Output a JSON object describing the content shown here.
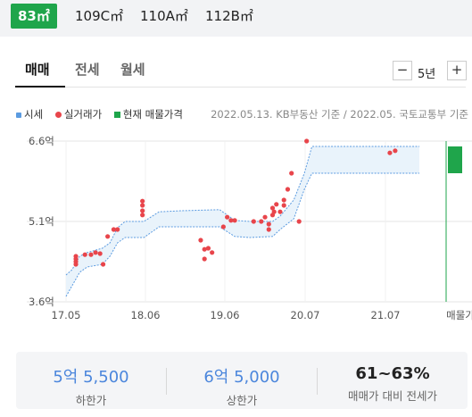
{
  "area_tabs": [
    {
      "label": "83㎡",
      "active": true
    },
    {
      "label": "109C㎡",
      "active": false
    },
    {
      "label": "110A㎡",
      "active": false
    },
    {
      "label": "112B㎡",
      "active": false
    }
  ],
  "deal_tabs": [
    {
      "label": "매매",
      "active": true
    },
    {
      "label": "전세",
      "active": false
    },
    {
      "label": "월세",
      "active": false
    }
  ],
  "period": {
    "decrement": "−",
    "label": "5년",
    "increment": "+"
  },
  "legend": {
    "market": "시세",
    "actual": "실거래가",
    "listing": "현재 매물가격"
  },
  "source_note": "2022.05.13. KB부동산 기준 / 2022.05. 국토교통부 기준",
  "colors": {
    "brand_green": "#1fa54b",
    "market_line": "#5b9be0",
    "band_fill": "#e9f3fb",
    "actual_dot": "#e8454b"
  },
  "chart_data": {
    "type": "line",
    "x_ticks": [
      "17.05",
      "18.06",
      "19.06",
      "20.07",
      "21.07",
      "매물가"
    ],
    "y_ticks": [
      "6.6억",
      "5.1억",
      "3.6억"
    ],
    "ylim": [
      3.6,
      6.6
    ],
    "xlim": [
      2017.37,
      2022.37
    ],
    "grid": true,
    "market_upper": [
      [
        2017.37,
        4.1
      ],
      [
        2017.45,
        4.2
      ],
      [
        2017.55,
        4.45
      ],
      [
        2017.65,
        4.52
      ],
      [
        2017.85,
        4.6
      ],
      [
        2017.95,
        4.7
      ],
      [
        2018.05,
        4.98
      ],
      [
        2018.15,
        5.1
      ],
      [
        2018.4,
        5.1
      ],
      [
        2018.6,
        5.28
      ],
      [
        2018.9,
        5.3
      ],
      [
        2019.4,
        5.32
      ],
      [
        2019.6,
        5.12
      ],
      [
        2019.8,
        5.1
      ],
      [
        2020.1,
        5.1
      ],
      [
        2020.2,
        5.2
      ],
      [
        2020.38,
        5.5
      ],
      [
        2020.52,
        6.0
      ],
      [
        2020.62,
        6.5
      ],
      [
        2021.0,
        6.5
      ],
      [
        2021.8,
        6.5
      ],
      [
        2022.04,
        6.5
      ]
    ],
    "market_lower": [
      [
        2017.37,
        3.7
      ],
      [
        2017.45,
        3.9
      ],
      [
        2017.55,
        4.15
      ],
      [
        2017.65,
        4.25
      ],
      [
        2017.85,
        4.3
      ],
      [
        2017.95,
        4.45
      ],
      [
        2018.05,
        4.7
      ],
      [
        2018.15,
        4.8
      ],
      [
        2018.4,
        4.8
      ],
      [
        2018.6,
        5.0
      ],
      [
        2018.9,
        5.0
      ],
      [
        2019.4,
        5.0
      ],
      [
        2019.6,
        4.82
      ],
      [
        2019.8,
        4.8
      ],
      [
        2020.1,
        4.82
      ],
      [
        2020.2,
        4.95
      ],
      [
        2020.38,
        5.15
      ],
      [
        2020.52,
        5.7
      ],
      [
        2020.62,
        6.0
      ],
      [
        2021.0,
        6.0
      ],
      [
        2021.8,
        6.0
      ],
      [
        2022.04,
        6.0
      ]
    ],
    "actual_trades": [
      [
        2017.5,
        4.45
      ],
      [
        2017.5,
        4.4
      ],
      [
        2017.5,
        4.35
      ],
      [
        2017.5,
        4.3
      ],
      [
        2017.62,
        4.48
      ],
      [
        2017.7,
        4.48
      ],
      [
        2017.76,
        4.52
      ],
      [
        2017.82,
        4.5
      ],
      [
        2017.86,
        4.3
      ],
      [
        2017.92,
        4.82
      ],
      [
        2018.0,
        4.95
      ],
      [
        2018.05,
        4.95
      ],
      [
        2018.38,
        5.48
      ],
      [
        2018.38,
        5.4
      ],
      [
        2018.38,
        5.3
      ],
      [
        2018.38,
        5.22
      ],
      [
        2019.15,
        4.75
      ],
      [
        2019.2,
        4.58
      ],
      [
        2019.2,
        4.4
      ],
      [
        2019.25,
        4.6
      ],
      [
        2019.3,
        4.52
      ],
      [
        2019.45,
        5.0
      ],
      [
        2019.5,
        5.18
      ],
      [
        2019.55,
        5.12
      ],
      [
        2019.6,
        5.12
      ],
      [
        2019.85,
        5.1
      ],
      [
        2019.95,
        5.1
      ],
      [
        2020.0,
        5.18
      ],
      [
        2020.05,
        5.05
      ],
      [
        2020.05,
        4.95
      ],
      [
        2020.1,
        5.35
      ],
      [
        2020.1,
        5.22
      ],
      [
        2020.12,
        5.28
      ],
      [
        2020.15,
        5.42
      ],
      [
        2020.2,
        5.28
      ],
      [
        2020.25,
        5.4
      ],
      [
        2020.25,
        5.5
      ],
      [
        2020.3,
        5.7
      ],
      [
        2020.35,
        6.0
      ],
      [
        2020.45,
        5.1
      ],
      [
        2020.55,
        6.6
      ],
      [
        2021.65,
        6.38
      ],
      [
        2021.72,
        6.42
      ]
    ],
    "listing_range": [
      6.0,
      6.5
    ]
  },
  "summary": {
    "lower": {
      "value": "5억 5,500",
      "label": "하한가"
    },
    "upper": {
      "value": "6억 5,000",
      "label": "상한가"
    },
    "ratio": {
      "value": "61~63%",
      "label": "매매가 대비 전세가"
    }
  }
}
